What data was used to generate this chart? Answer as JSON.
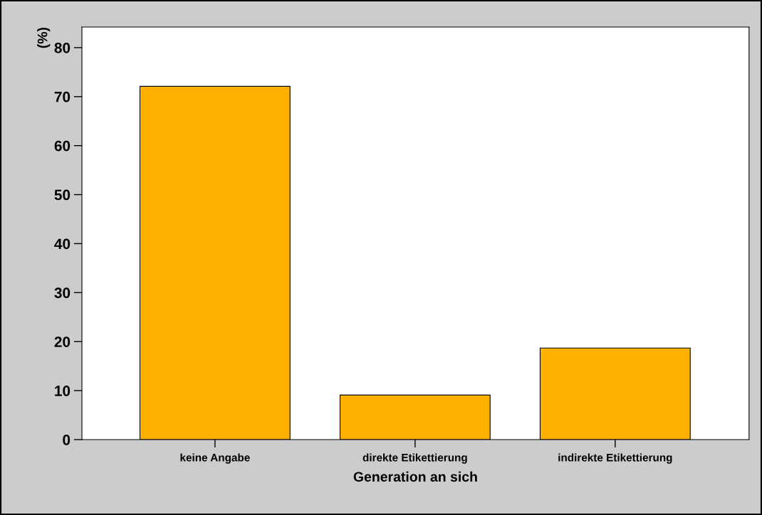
{
  "chart_data": {
    "type": "bar",
    "xlabel": "Generation an sich",
    "ylabel": "(%)",
    "categories": [
      "keine Angabe",
      "direkte Etikettierung",
      "indirekte Etikettierung"
    ],
    "values": [
      72.1,
      9.1,
      18.7
    ],
    "color": "#ffb000",
    "ylim": [
      0,
      84.2
    ],
    "yticks": [
      0,
      10,
      20,
      30,
      40,
      50,
      60,
      70,
      80
    ],
    "grid": false,
    "legend": false
  }
}
